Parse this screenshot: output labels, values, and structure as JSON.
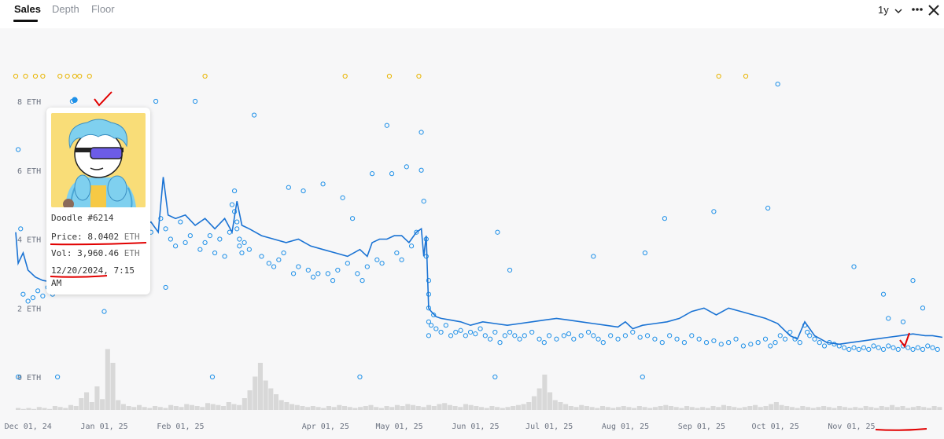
{
  "tabs": [
    {
      "label": "Sales",
      "active": true
    },
    {
      "label": "Depth",
      "active": false
    },
    {
      "label": "Floor",
      "active": false
    }
  ],
  "controls": {
    "range": "1y",
    "more_icon": "more-dots-icon",
    "close_icon": "close-icon"
  },
  "tooltip": {
    "name": "Doodle #6214",
    "price_label": "Price:",
    "price": "8.0402",
    "price_unit": "ETH",
    "vol_label": "Vol:",
    "vol": "3,960.46",
    "vol_unit": "ETH",
    "date": "12/20/2024,",
    "time": "7:15",
    "ampm": "AM",
    "image": "doodle-character-image"
  },
  "colors": {
    "sale": "#1e90e8",
    "floor_line": "#1a73d4",
    "outlier": "#e8b400",
    "volume": "#d8d8d8",
    "annotation": "#e10000"
  },
  "chart_data": {
    "type": "scatter",
    "y_ticks": [
      "0 ETH",
      "2 ETH",
      "4 ETH",
      "6 ETH",
      "8 ETH"
    ],
    "ylim": [
      0,
      9
    ],
    "x_ticks": [
      "Dec 01, 24",
      "Jan 01, 25",
      "Feb 01, 25",
      "Apr 01, 25",
      "May 01, 25",
      "Jun 01, 25",
      "Jul 01, 25",
      "Aug 01, 25",
      "Sep 01, 25",
      "Oct 01, 25",
      "Nov 01, 25"
    ],
    "x_tick_days": [
      0,
      31,
      62,
      121,
      151,
      182,
      212,
      243,
      274,
      304,
      335
    ],
    "xlim": [
      -5,
      372
    ],
    "highlighted_sale": {
      "x": 19,
      "y": 8.04
    },
    "floor_line": [
      [
        -5,
        4.2
      ],
      [
        -4,
        3.3
      ],
      [
        -2,
        3.6
      ],
      [
        0,
        3.1
      ],
      [
        3,
        2.9
      ],
      [
        6,
        2.8
      ],
      [
        10,
        2.75
      ],
      [
        15,
        3.0
      ],
      [
        20,
        3.3
      ],
      [
        25,
        3.4
      ],
      [
        30,
        3.5
      ],
      [
        33,
        4.1
      ],
      [
        36,
        4.2
      ],
      [
        40,
        4.4
      ],
      [
        43,
        4.5
      ],
      [
        47,
        4.35
      ],
      [
        50,
        4.5
      ],
      [
        53,
        4.2
      ],
      [
        55,
        5.8
      ],
      [
        57,
        4.7
      ],
      [
        60,
        4.6
      ],
      [
        64,
        4.7
      ],
      [
        68,
        4.4
      ],
      [
        72,
        4.6
      ],
      [
        76,
        4.3
      ],
      [
        80,
        4.6
      ],
      [
        83,
        4.2
      ],
      [
        85,
        5.1
      ],
      [
        87,
        4.4
      ],
      [
        90,
        4.3
      ],
      [
        95,
        4.1
      ],
      [
        100,
        4.0
      ],
      [
        105,
        3.9
      ],
      [
        110,
        4.0
      ],
      [
        115,
        3.8
      ],
      [
        120,
        3.7
      ],
      [
        125,
        3.6
      ],
      [
        130,
        3.5
      ],
      [
        135,
        3.7
      ],
      [
        138,
        3.5
      ],
      [
        140,
        3.9
      ],
      [
        143,
        4.0
      ],
      [
        146,
        4.0
      ],
      [
        149,
        4.1
      ],
      [
        152,
        4.1
      ],
      [
        155,
        3.9
      ],
      [
        158,
        4.2
      ],
      [
        160,
        4.3
      ],
      [
        161,
        3.5
      ],
      [
        162,
        4.1
      ],
      [
        163,
        2.0
      ],
      [
        164,
        1.9
      ],
      [
        166,
        1.75
      ],
      [
        168,
        1.7
      ],
      [
        172,
        1.65
      ],
      [
        176,
        1.6
      ],
      [
        180,
        1.5
      ],
      [
        185,
        1.6
      ],
      [
        190,
        1.55
      ],
      [
        195,
        1.5
      ],
      [
        200,
        1.55
      ],
      [
        205,
        1.6
      ],
      [
        210,
        1.65
      ],
      [
        215,
        1.7
      ],
      [
        220,
        1.65
      ],
      [
        225,
        1.6
      ],
      [
        230,
        1.55
      ],
      [
        235,
        1.5
      ],
      [
        240,
        1.45
      ],
      [
        243,
        1.6
      ],
      [
        246,
        1.4
      ],
      [
        250,
        1.5
      ],
      [
        255,
        1.55
      ],
      [
        260,
        1.6
      ],
      [
        265,
        1.7
      ],
      [
        270,
        1.9
      ],
      [
        275,
        2.0
      ],
      [
        280,
        1.8
      ],
      [
        285,
        2.0
      ],
      [
        290,
        1.9
      ],
      [
        295,
        1.8
      ],
      [
        300,
        1.7
      ],
      [
        305,
        1.55
      ],
      [
        310,
        1.2
      ],
      [
        313,
        1.1
      ],
      [
        316,
        1.6
      ],
      [
        318,
        1.4
      ],
      [
        320,
        1.2
      ],
      [
        325,
        1.0
      ],
      [
        330,
        0.95
      ],
      [
        335,
        1.0
      ],
      [
        340,
        1.05
      ],
      [
        345,
        1.1
      ],
      [
        350,
        1.15
      ],
      [
        355,
        1.2
      ],
      [
        360,
        1.25
      ],
      [
        365,
        1.2
      ],
      [
        368,
        1.2
      ],
      [
        372,
        1.15
      ]
    ],
    "sales": [
      [
        -4,
        6.6
      ],
      [
        -3,
        4.3
      ],
      [
        -2,
        2.4
      ],
      [
        0,
        2.2
      ],
      [
        2,
        2.3
      ],
      [
        4,
        2.5
      ],
      [
        6,
        2.35
      ],
      [
        8,
        2.6
      ],
      [
        10,
        2.4
      ],
      [
        12,
        2.5
      ],
      [
        14,
        2.8
      ],
      [
        16,
        2.7
      ],
      [
        18,
        8.0
      ],
      [
        19,
        8.04
      ],
      [
        22,
        2.6
      ],
      [
        24,
        2.9
      ],
      [
        27,
        3.0
      ],
      [
        30,
        3.1
      ],
      [
        33,
        3.6
      ],
      [
        35,
        3.7
      ],
      [
        37,
        4.0
      ],
      [
        40,
        3.8
      ],
      [
        42,
        4.1
      ],
      [
        44,
        4.3
      ],
      [
        46,
        4.0
      ],
      [
        48,
        3.9
      ],
      [
        50,
        4.2
      ],
      [
        52,
        8.0
      ],
      [
        54,
        4.6
      ],
      [
        56,
        4.3
      ],
      [
        58,
        4.0
      ],
      [
        60,
        3.8
      ],
      [
        62,
        4.5
      ],
      [
        64,
        3.9
      ],
      [
        66,
        4.1
      ],
      [
        68,
        8.0
      ],
      [
        70,
        3.7
      ],
      [
        72,
        3.9
      ],
      [
        74,
        4.1
      ],
      [
        76,
        3.6
      ],
      [
        78,
        4.0
      ],
      [
        80,
        3.5
      ],
      [
        82,
        4.2
      ],
      [
        83,
        5.0
      ],
      [
        84,
        4.8
      ],
      [
        85,
        4.5
      ],
      [
        85,
        4.3
      ],
      [
        86,
        4.0
      ],
      [
        86,
        3.8
      ],
      [
        87,
        3.6
      ],
      [
        88,
        3.9
      ],
      [
        90,
        3.7
      ],
      [
        92,
        7.6
      ],
      [
        95,
        3.5
      ],
      [
        98,
        3.3
      ],
      [
        100,
        3.2
      ],
      [
        102,
        3.4
      ],
      [
        104,
        3.6
      ],
      [
        106,
        5.5
      ],
      [
        108,
        3.0
      ],
      [
        110,
        3.2
      ],
      [
        112,
        5.4
      ],
      [
        114,
        3.1
      ],
      [
        116,
        2.9
      ],
      [
        118,
        3.0
      ],
      [
        120,
        5.6
      ],
      [
        122,
        3.0
      ],
      [
        124,
        2.8
      ],
      [
        126,
        3.1
      ],
      [
        128,
        5.2
      ],
      [
        130,
        3.3
      ],
      [
        132,
        4.6
      ],
      [
        134,
        3.0
      ],
      [
        136,
        2.8
      ],
      [
        138,
        3.2
      ],
      [
        140,
        5.9
      ],
      [
        142,
        3.4
      ],
      [
        144,
        3.3
      ],
      [
        146,
        7.3
      ],
      [
        148,
        5.9
      ],
      [
        150,
        3.6
      ],
      [
        152,
        3.4
      ],
      [
        154,
        6.1
      ],
      [
        156,
        3.8
      ],
      [
        158,
        4.2
      ],
      [
        160,
        7.1
      ],
      [
        160,
        6.0
      ],
      [
        161,
        5.1
      ],
      [
        162,
        4.0
      ],
      [
        162,
        3.5
      ],
      [
        163,
        2.8
      ],
      [
        163,
        2.4
      ],
      [
        163,
        2.0
      ],
      [
        163,
        1.6
      ],
      [
        163,
        1.2
      ],
      [
        164,
        1.5
      ],
      [
        165,
        1.8
      ],
      [
        166,
        1.4
      ],
      [
        168,
        1.3
      ],
      [
        170,
        1.5
      ],
      [
        172,
        1.2
      ],
      [
        174,
        1.3
      ],
      [
        176,
        1.35
      ],
      [
        178,
        1.2
      ],
      [
        180,
        1.3
      ],
      [
        182,
        1.25
      ],
      [
        184,
        1.4
      ],
      [
        186,
        1.2
      ],
      [
        188,
        1.1
      ],
      [
        190,
        1.3
      ],
      [
        192,
        1.0
      ],
      [
        194,
        1.2
      ],
      [
        196,
        1.3
      ],
      [
        198,
        1.2
      ],
      [
        200,
        1.1
      ],
      [
        202,
        1.2
      ],
      [
        205,
        1.3
      ],
      [
        208,
        1.1
      ],
      [
        210,
        1.0
      ],
      [
        212,
        1.2
      ],
      [
        215,
        1.1
      ],
      [
        218,
        1.2
      ],
      [
        220,
        1.25
      ],
      [
        222,
        1.1
      ],
      [
        225,
        1.2
      ],
      [
        228,
        1.3
      ],
      [
        230,
        1.2
      ],
      [
        232,
        1.1
      ],
      [
        234,
        1.0
      ],
      [
        237,
        1.2
      ],
      [
        240,
        1.1
      ],
      [
        243,
        1.2
      ],
      [
        246,
        1.3
      ],
      [
        249,
        1.15
      ],
      [
        252,
        1.2
      ],
      [
        255,
        1.1
      ],
      [
        258,
        1.0
      ],
      [
        261,
        1.2
      ],
      [
        264,
        1.1
      ],
      [
        267,
        1.0
      ],
      [
        270,
        1.2
      ],
      [
        273,
        1.1
      ],
      [
        276,
        1.0
      ],
      [
        279,
        1.05
      ],
      [
        282,
        0.95
      ],
      [
        285,
        1.0
      ],
      [
        288,
        1.1
      ],
      [
        291,
        0.9
      ],
      [
        294,
        0.95
      ],
      [
        297,
        1.0
      ],
      [
        300,
        1.1
      ],
      [
        302,
        0.9
      ],
      [
        304,
        1.0
      ],
      [
        306,
        1.2
      ],
      [
        308,
        1.1
      ],
      [
        310,
        1.3
      ],
      [
        312,
        1.1
      ],
      [
        314,
        1.0
      ],
      [
        316,
        1.5
      ],
      [
        317,
        1.3
      ],
      [
        318,
        1.2
      ],
      [
        320,
        1.1
      ],
      [
        322,
        1.0
      ],
      [
        324,
        0.9
      ],
      [
        326,
        1.0
      ],
      [
        328,
        0.95
      ],
      [
        330,
        0.9
      ],
      [
        332,
        0.85
      ],
      [
        334,
        0.8
      ],
      [
        336,
        0.85
      ],
      [
        338,
        0.8
      ],
      [
        340,
        0.85
      ],
      [
        342,
        0.8
      ],
      [
        344,
        0.9
      ],
      [
        346,
        0.85
      ],
      [
        348,
        0.8
      ],
      [
        350,
        0.9
      ],
      [
        352,
        0.85
      ],
      [
        354,
        0.8
      ],
      [
        356,
        0.9
      ],
      [
        358,
        0.85
      ],
      [
        360,
        0.8
      ],
      [
        362,
        0.85
      ],
      [
        364,
        0.8
      ],
      [
        366,
        0.9
      ],
      [
        368,
        0.85
      ],
      [
        370,
        0.8
      ],
      [
        84,
        5.4
      ],
      [
        191,
        4.2
      ],
      [
        196,
        3.1
      ],
      [
        230,
        3.5
      ],
      [
        251,
        3.6
      ],
      [
        259,
        4.6
      ],
      [
        279,
        4.8
      ],
      [
        301,
        4.9
      ],
      [
        336,
        3.2
      ],
      [
        348,
        2.4
      ],
      [
        360,
        2.8
      ],
      [
        305,
        8.5
      ],
      [
        350,
        1.7
      ],
      [
        356,
        1.6
      ],
      [
        364,
        2.0
      ],
      [
        56,
        2.6
      ],
      [
        31,
        1.9
      ],
      [
        12,
        0.0
      ],
      [
        -4,
        0.0
      ],
      [
        75,
        0.0
      ],
      [
        135,
        0.0
      ],
      [
        190,
        0.0
      ],
      [
        250,
        0.0
      ]
    ],
    "outliers": [
      -5,
      -1,
      3,
      6,
      13,
      16,
      19,
      21,
      25,
      72,
      129,
      147,
      159,
      281,
      292
    ],
    "volume": [
      2,
      1,
      2,
      1,
      3,
      2,
      1,
      4,
      3,
      2,
      5,
      4,
      12,
      18,
      8,
      24,
      11,
      62,
      48,
      10,
      6,
      4,
      3,
      5,
      3,
      2,
      4,
      3,
      2,
      5,
      4,
      3,
      6,
      5,
      4,
      3,
      7,
      6,
      5,
      4,
      8,
      6,
      5,
      12,
      20,
      34,
      48,
      30,
      22,
      16,
      10,
      8,
      6,
      5,
      4,
      3,
      4,
      3,
      2,
      4,
      3,
      5,
      4,
      3,
      2,
      3,
      4,
      5,
      3,
      2,
      4,
      3,
      5,
      4,
      6,
      5,
      4,
      3,
      5,
      4,
      6,
      7,
      5,
      4,
      3,
      6,
      5,
      4,
      3,
      2,
      4,
      3,
      2,
      3,
      4,
      5,
      6,
      8,
      14,
      22,
      36,
      18,
      10,
      8,
      6,
      4,
      3,
      5,
      4,
      3,
      2,
      4,
      3,
      2,
      3,
      4,
      3,
      2,
      4,
      3,
      2,
      3,
      4,
      5,
      4,
      3,
      2,
      4,
      3,
      2,
      3,
      2,
      4,
      3,
      5,
      4,
      3,
      2,
      3,
      4,
      5,
      3,
      4,
      6,
      8,
      5,
      4,
      3,
      2,
      4,
      3,
      2,
      3,
      4,
      3,
      2,
      4,
      3,
      2,
      3,
      2,
      4,
      3,
      2,
      4,
      3,
      5,
      3,
      4,
      2,
      3,
      4,
      3,
      2,
      4,
      3
    ]
  }
}
